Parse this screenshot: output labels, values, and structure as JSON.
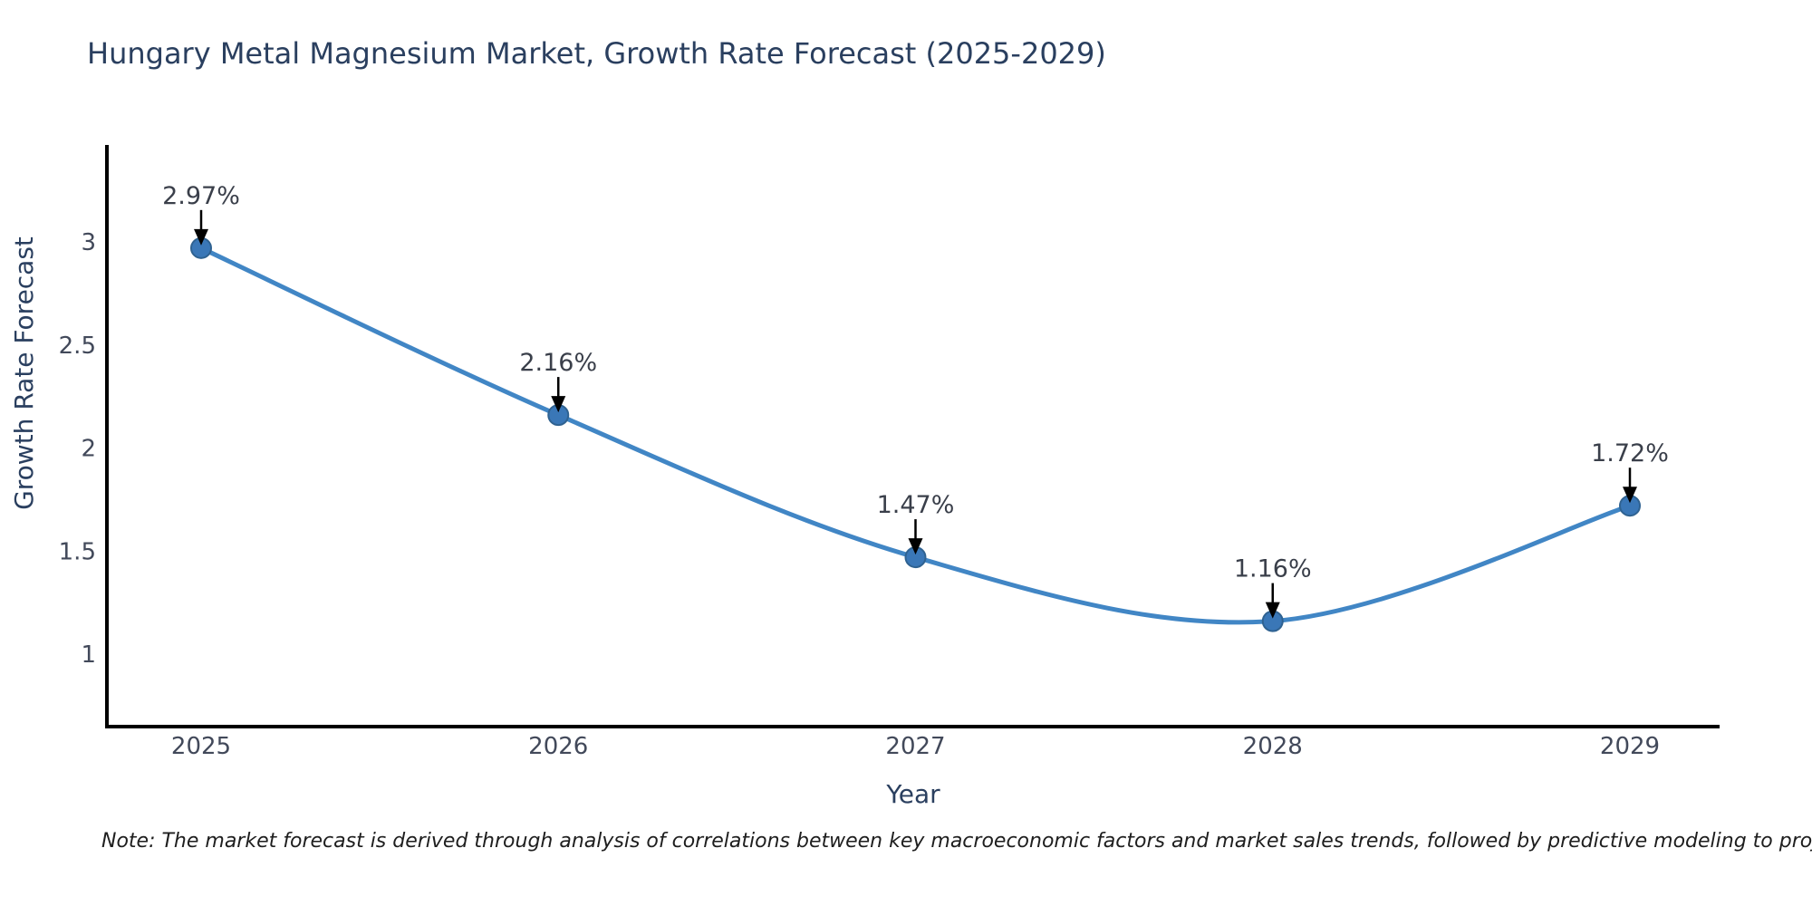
{
  "title": "Hungary Metal Magnesium Market, Growth Rate Forecast (2025-2029)",
  "note": "Note: The market forecast is derived through analysis of correlations between key macroeconomic factors and market sales trends, followed by predictive modeling to project future sales",
  "chart_data": {
    "type": "line",
    "title": "Hungary Metal Magnesium Market, Growth Rate Forecast (2025-2029)",
    "x": [
      2025,
      2026,
      2027,
      2028,
      2029
    ],
    "values": [
      2.97,
      2.16,
      1.47,
      1.16,
      1.72
    ],
    "point_labels": [
      "2.97%",
      "2.16%",
      "1.47%",
      "1.16%",
      "1.72%"
    ],
    "xlabel": "Year",
    "ylabel": "Growth Rate Forecast",
    "xtick_labels": [
      "2025",
      "2026",
      "2027",
      "2028",
      "2029"
    ],
    "ytick_values": [
      1,
      1.5,
      2,
      2.5,
      3
    ],
    "ytick_labels": [
      "1",
      "1.5",
      "2",
      "2.5",
      "3"
    ],
    "xlim": [
      2024.74,
      2029.25
    ],
    "ylim": [
      0.64,
      3.47
    ],
    "line_shape": "spline",
    "grid": false,
    "legend": "none",
    "colors": {
      "line": "#4186c5",
      "marker_fill": "#3a77b7",
      "marker_stroke": "#2f6291",
      "axis_line": "#000000",
      "arrow": "#000000",
      "title_text": "#2a3f5f",
      "tick_text": "#42495a",
      "annotation_text": "#3a3f4a",
      "note_text": "#1e1e1e",
      "background": "#ffffff"
    }
  }
}
